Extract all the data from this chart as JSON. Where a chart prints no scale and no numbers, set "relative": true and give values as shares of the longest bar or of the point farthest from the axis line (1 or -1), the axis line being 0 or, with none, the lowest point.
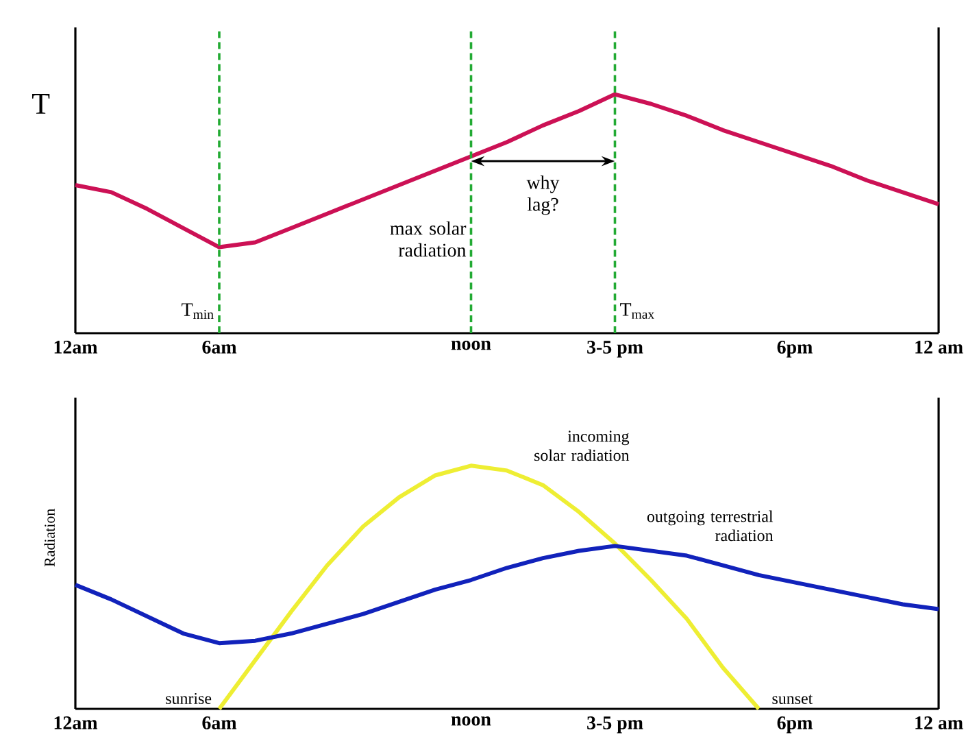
{
  "chart_data": [
    {
      "type": "line",
      "ylabel": "T",
      "relative": true,
      "categories": [
        "12am",
        null,
        null,
        null,
        "6am",
        null,
        null,
        null,
        null,
        null,
        null,
        "noon",
        null,
        null,
        null,
        "3-5 pm",
        null,
        null,
        null,
        null,
        "6pm",
        null,
        null,
        null,
        "12 am"
      ],
      "series": [
        {
          "color": "#cc1155",
          "values": [
            0.62,
            0.59,
            0.52,
            0.44,
            0.36,
            0.38,
            0.44,
            0.5,
            0.56,
            0.62,
            0.68,
            0.74,
            0.8,
            0.87,
            0.93,
            1,
            0.96,
            0.91,
            0.85,
            0.8,
            0.75,
            0.7,
            0.64,
            0.59,
            0.54
          ]
        }
      ],
      "ref_lines": [
        {
          "axis": "x",
          "value": "6am",
          "label": "T$_{min}$",
          "color": "#22aa33",
          "line_style": "dashed"
        },
        {
          "axis": "x",
          "value": "noon",
          "label": "max solar radiation",
          "color": "#22aa33",
          "line_style": "dashed"
        },
        {
          "axis": "x",
          "value": "3-5 pm",
          "label": "T$_{max}$",
          "color": "#22aa33",
          "line_style": "dashed"
        }
      ],
      "annotations": [
        "why lag?"
      ]
    },
    {
      "type": "line",
      "ylabel": "Radiation",
      "relative": true,
      "categories": [
        "12am",
        null,
        null,
        null,
        "6am",
        null,
        null,
        null,
        null,
        null,
        null,
        "noon",
        null,
        null,
        null,
        "3-5 pm",
        null,
        null,
        null,
        null,
        "6pm",
        null,
        null,
        null,
        "12 am"
      ],
      "series": [
        {
          "name": "incoming solar radiation",
          "color": "#eeee33",
          "values": [
            null,
            null,
            null,
            null,
            0,
            0.2,
            0.4,
            0.59,
            0.75,
            0.87,
            0.96,
            1,
            0.98,
            0.92,
            0.81,
            0.68,
            0.53,
            0.37,
            0.17,
            0,
            null,
            null,
            null,
            null,
            null
          ]
        },
        {
          "name": "outgoing terrestrial radiation",
          "color": "#1122bb",
          "values": [
            0.51,
            0.45,
            0.38,
            0.31,
            0.27,
            0.28,
            0.31,
            0.35,
            0.39,
            0.44,
            0.49,
            0.53,
            0.58,
            0.62,
            0.65,
            0.67,
            0.65,
            0.63,
            0.59,
            0.55,
            0.52,
            0.49,
            0.46,
            0.43,
            0.41
          ]
        }
      ],
      "annotations": [
        "sunrise",
        "sunset"
      ]
    }
  ]
}
